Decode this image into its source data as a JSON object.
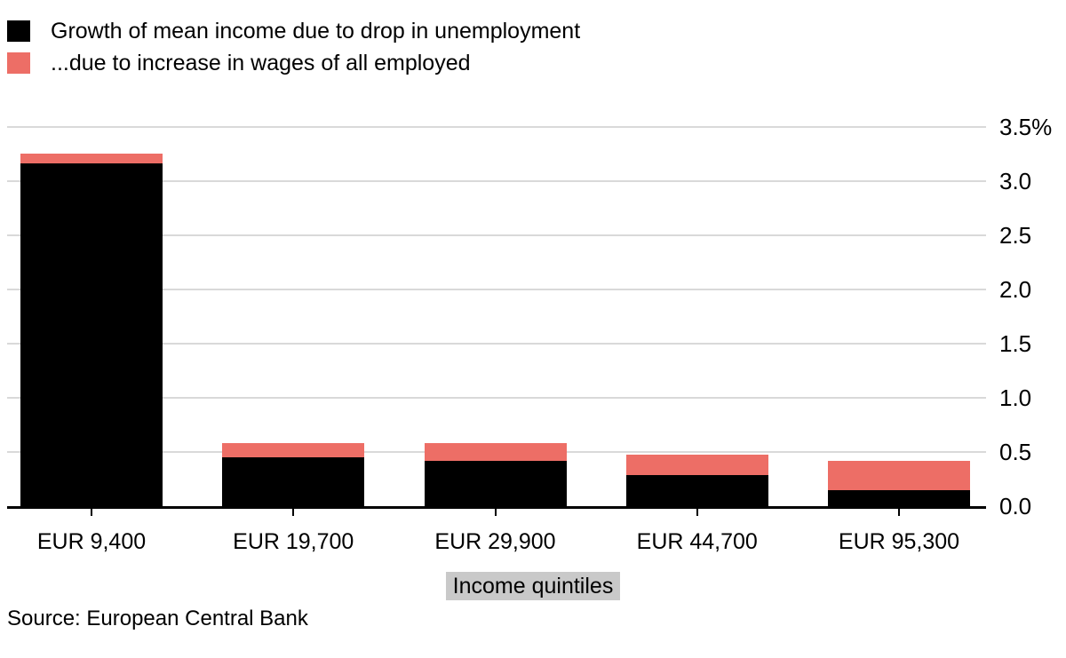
{
  "chart_data": {
    "type": "bar",
    "stacked": true,
    "title": "",
    "categories": [
      "EUR 9,400",
      "EUR 19,700",
      "EUR 29,900",
      "EUR 44,700",
      "EUR 95,300"
    ],
    "series": [
      {
        "name": "Growth of mean income due to drop in unemployment",
        "color": "#000000",
        "values": [
          3.16,
          0.45,
          0.42,
          0.29,
          0.15
        ]
      },
      {
        "name": "...due to increase in wages of all employed",
        "color": "#ED6E66",
        "values": [
          0.09,
          0.13,
          0.16,
          0.19,
          0.27
        ]
      }
    ],
    "xlabel": "Income quintiles",
    "ylabel": "",
    "ylim": [
      0,
      3.5
    ],
    "yticks": [
      {
        "value": 3.5,
        "label": "3.5%"
      },
      {
        "value": 3.0,
        "label": "3.0"
      },
      {
        "value": 2.5,
        "label": "2.5"
      },
      {
        "value": 2.0,
        "label": "2.0"
      },
      {
        "value": 1.5,
        "label": "1.5"
      },
      {
        "value": 1.0,
        "label": "1.0"
      },
      {
        "value": 0.5,
        "label": "0.5"
      },
      {
        "value": 0.0,
        "label": "0.0"
      }
    ],
    "grid": true,
    "legend_position": "top-left"
  },
  "legend": {
    "items": [
      {
        "label": "Growth of mean income due to drop in unemployment",
        "color": "#000000"
      },
      {
        "label": "...due to increase in wages of all employed",
        "color": "#ED6E66"
      }
    ]
  },
  "source_note": "Source: European Central Bank",
  "colors": {
    "background": "#ffffff",
    "bar_unemployment": "#000000",
    "bar_wages": "#ED6E66",
    "gridline": "#d9d9d9",
    "axis_line": "#000000",
    "xlabel_highlight": "#c9c9c9",
    "text": "#000000"
  }
}
